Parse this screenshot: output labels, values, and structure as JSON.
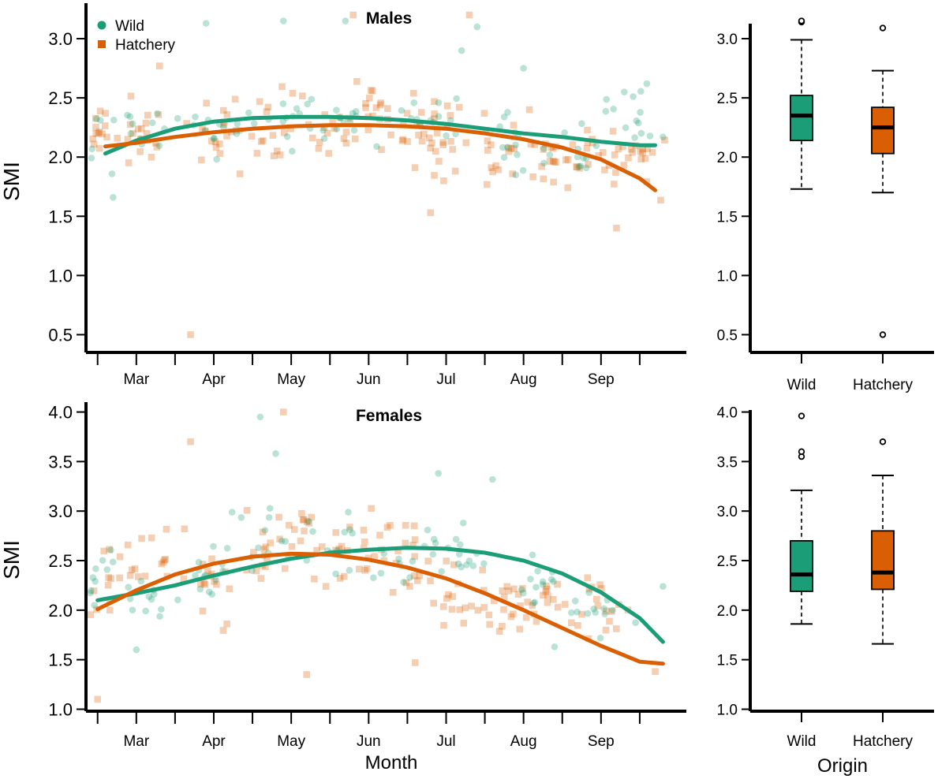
{
  "chart_data": [
    {
      "id": "males_scatter",
      "type": "scatter",
      "title": "Males",
      "xlabel": "",
      "ylabel": "SMI",
      "xlim": [
        -0.15,
        7.5
      ],
      "ylim": [
        0.35,
        3.3
      ],
      "month_ticks": [
        "Mar",
        "Apr",
        "May",
        "Jun",
        "Jul",
        "Aug",
        "Sep"
      ],
      "y_ticks": [
        "0.5",
        "1.0",
        "1.5",
        "2.0",
        "2.5",
        "3.0"
      ],
      "legend": [
        {
          "label": "Wild",
          "color": "#1b9e77",
          "marker": "circle"
        },
        {
          "label": "Hatchery",
          "color": "#d95f02",
          "marker": "square"
        }
      ],
      "fits": [
        {
          "name": "Wild",
          "color": "#1b9e77",
          "x": [
            0.1,
            0.5,
            1,
            1.5,
            2,
            2.5,
            3,
            3.5,
            4,
            4.5,
            5,
            5.5,
            6,
            6.5,
            7,
            7.2
          ],
          "y": [
            2.03,
            2.14,
            2.24,
            2.3,
            2.33,
            2.34,
            2.34,
            2.33,
            2.31,
            2.28,
            2.24,
            2.2,
            2.17,
            2.13,
            2.1,
            2.1
          ]
        },
        {
          "name": "Hatchery",
          "color": "#d95f02",
          "x": [
            0.1,
            0.5,
            1,
            1.5,
            2,
            2.5,
            3,
            3.5,
            4,
            4.5,
            5,
            5.5,
            6,
            6.5,
            7,
            7.2
          ],
          "y": [
            2.09,
            2.12,
            2.17,
            2.21,
            2.24,
            2.26,
            2.27,
            2.27,
            2.26,
            2.24,
            2.2,
            2.15,
            2.08,
            1.98,
            1.82,
            1.72
          ]
        }
      ],
      "clusters": {
        "wild": [
          [
            0,
            2.2,
            0.35
          ],
          [
            0.6,
            2.25,
            0.35
          ],
          [
            1.5,
            2.2,
            0.3
          ],
          [
            2.5,
            2.35,
            0.35
          ],
          [
            3.3,
            2.25,
            0.25
          ],
          [
            4.3,
            2.35,
            0.3
          ],
          [
            5.3,
            2.15,
            0.35
          ],
          [
            6.1,
            2.05,
            0.3
          ],
          [
            6.9,
            2.35,
            0.3
          ]
        ],
        "hatchery": [
          [
            0,
            2.15,
            0.35
          ],
          [
            0.6,
            2.2,
            0.35
          ],
          [
            1.5,
            2.15,
            0.35
          ],
          [
            2.2,
            2.3,
            0.35
          ],
          [
            3,
            2.25,
            0.35
          ],
          [
            3.6,
            2.3,
            0.35
          ],
          [
            4.1,
            2.25,
            0.35
          ],
          [
            4.5,
            2.2,
            0.35
          ],
          [
            5.2,
            2.1,
            0.4
          ],
          [
            5.8,
            2.0,
            0.3
          ],
          [
            6.4,
            2.0,
            0.35
          ],
          [
            7,
            2.0,
            0.35
          ]
        ]
      },
      "outliers": {
        "wild": [
          [
            0.2,
            1.66
          ],
          [
            2.4,
            3.15
          ],
          [
            3.2,
            3.15
          ],
          [
            4.7,
            2.9
          ],
          [
            4.9,
            3.1
          ],
          [
            5.5,
            2.75
          ],
          [
            7.3,
            2.17
          ],
          [
            1.4,
            3.13
          ],
          [
            6.8,
            2.55
          ]
        ],
        "hatchery": [
          [
            1.2,
            0.5
          ],
          [
            3.3,
            3.2
          ],
          [
            4.8,
            3.2
          ],
          [
            6.7,
            1.4
          ],
          [
            4.3,
            1.53
          ],
          [
            0.8,
            2.77
          ],
          [
            7.1,
            2.07
          ]
        ]
      }
    },
    {
      "id": "males_box",
      "type": "box",
      "xlabel": "",
      "ylim": [
        0.35,
        3.3
      ],
      "y_ticks": [
        "0.5",
        "1.0",
        "1.5",
        "2.0",
        "2.5",
        "3.0"
      ],
      "categories": [
        "Wild",
        "Hatchery"
      ],
      "boxes": [
        {
          "name": "Wild",
          "color": "#1b9e77",
          "whisker_low": 1.73,
          "q1": 2.14,
          "median": 2.35,
          "q3": 2.52,
          "whisker_high": 2.99,
          "outliers": [
            3.14,
            3.15
          ]
        },
        {
          "name": "Hatchery",
          "color": "#d95f02",
          "whisker_low": 1.7,
          "q1": 2.03,
          "median": 2.25,
          "q3": 2.42,
          "whisker_high": 2.73,
          "outliers": [
            3.09,
            0.5
          ]
        }
      ]
    },
    {
      "id": "females_scatter",
      "type": "scatter",
      "title": "Females",
      "xlabel": "Month",
      "ylabel": "SMI",
      "xlim": [
        -0.15,
        7.5
      ],
      "ylim": [
        0.98,
        4.1
      ],
      "month_ticks": [
        "Mar",
        "Apr",
        "May",
        "Jun",
        "Jul",
        "Aug",
        "Sep"
      ],
      "y_ticks": [
        "1.0",
        "1.5",
        "2.0",
        "2.5",
        "3.0",
        "3.5",
        "4.0"
      ],
      "fits": [
        {
          "name": "Wild",
          "color": "#1b9e77",
          "x": [
            0,
            0.5,
            1,
            1.5,
            2,
            2.5,
            3,
            3.5,
            4,
            4.5,
            5,
            5.5,
            6,
            6.5,
            7,
            7.3
          ],
          "y": [
            2.1,
            2.17,
            2.25,
            2.35,
            2.44,
            2.52,
            2.58,
            2.61,
            2.63,
            2.62,
            2.58,
            2.5,
            2.37,
            2.18,
            1.92,
            1.68
          ]
        },
        {
          "name": "Hatchery",
          "color": "#d95f02",
          "x": [
            0,
            0.5,
            1,
            1.5,
            2,
            2.5,
            3,
            3.5,
            4,
            4.5,
            5,
            5.5,
            6,
            6.5,
            7,
            7.3
          ],
          "y": [
            2.01,
            2.2,
            2.36,
            2.47,
            2.54,
            2.57,
            2.56,
            2.51,
            2.43,
            2.32,
            2.17,
            2.0,
            1.82,
            1.64,
            1.48,
            1.46
          ]
        }
      ],
      "clusters": {
        "wild": [
          [
            0,
            2.35,
            0.4
          ],
          [
            0.7,
            2.15,
            0.35
          ],
          [
            1.5,
            2.3,
            0.4
          ],
          [
            2.2,
            2.65,
            0.5
          ],
          [
            3,
            2.7,
            0.5
          ],
          [
            4,
            2.5,
            0.35
          ],
          [
            4.7,
            2.55,
            0.4
          ],
          [
            5.7,
            2.2,
            0.35
          ],
          [
            6.5,
            2.0,
            0.3
          ]
        ],
        "hatchery": [
          [
            0,
            2.25,
            0.4
          ],
          [
            0.6,
            2.4,
            0.5
          ],
          [
            1.4,
            2.3,
            0.5
          ],
          [
            2.2,
            2.6,
            0.55
          ],
          [
            2.8,
            2.65,
            0.55
          ],
          [
            3.4,
            2.55,
            0.55
          ],
          [
            4,
            2.45,
            0.45
          ],
          [
            4.6,
            2.1,
            0.5
          ],
          [
            5.2,
            2.05,
            0.4
          ],
          [
            5.8,
            2.1,
            0.35
          ],
          [
            6.5,
            2.0,
            0.4
          ]
        ]
      },
      "outliers": {
        "wild": [
          [
            2.1,
            3.95
          ],
          [
            2.3,
            3.58
          ],
          [
            4.4,
            3.38
          ],
          [
            5.1,
            3.32
          ],
          [
            0.5,
            1.6
          ],
          [
            7.3,
            2.24
          ],
          [
            5.9,
            1.63
          ]
        ],
        "hatchery": [
          [
            2.4,
            4.0
          ],
          [
            1.2,
            3.7
          ],
          [
            0,
            1.1
          ],
          [
            2.7,
            1.35
          ],
          [
            4.1,
            1.47
          ],
          [
            7.2,
            1.38
          ]
        ]
      }
    },
    {
      "id": "females_box",
      "type": "box",
      "xlabel": "Origin",
      "ylim": [
        0.98,
        4.1
      ],
      "y_ticks": [
        "1.0",
        "1.5",
        "2.0",
        "2.5",
        "3.0",
        "3.5",
        "4.0"
      ],
      "categories": [
        "Wild",
        "Hatchery"
      ],
      "boxes": [
        {
          "name": "Wild",
          "color": "#1b9e77",
          "whisker_low": 1.86,
          "q1": 2.19,
          "median": 2.36,
          "q3": 2.7,
          "whisker_high": 3.21,
          "outliers": [
            3.55,
            3.6,
            3.96
          ]
        },
        {
          "name": "Hatchery",
          "color": "#d95f02",
          "whisker_low": 1.66,
          "q1": 2.21,
          "median": 2.38,
          "q3": 2.8,
          "whisker_high": 3.36,
          "outliers": [
            3.7
          ]
        }
      ]
    }
  ]
}
